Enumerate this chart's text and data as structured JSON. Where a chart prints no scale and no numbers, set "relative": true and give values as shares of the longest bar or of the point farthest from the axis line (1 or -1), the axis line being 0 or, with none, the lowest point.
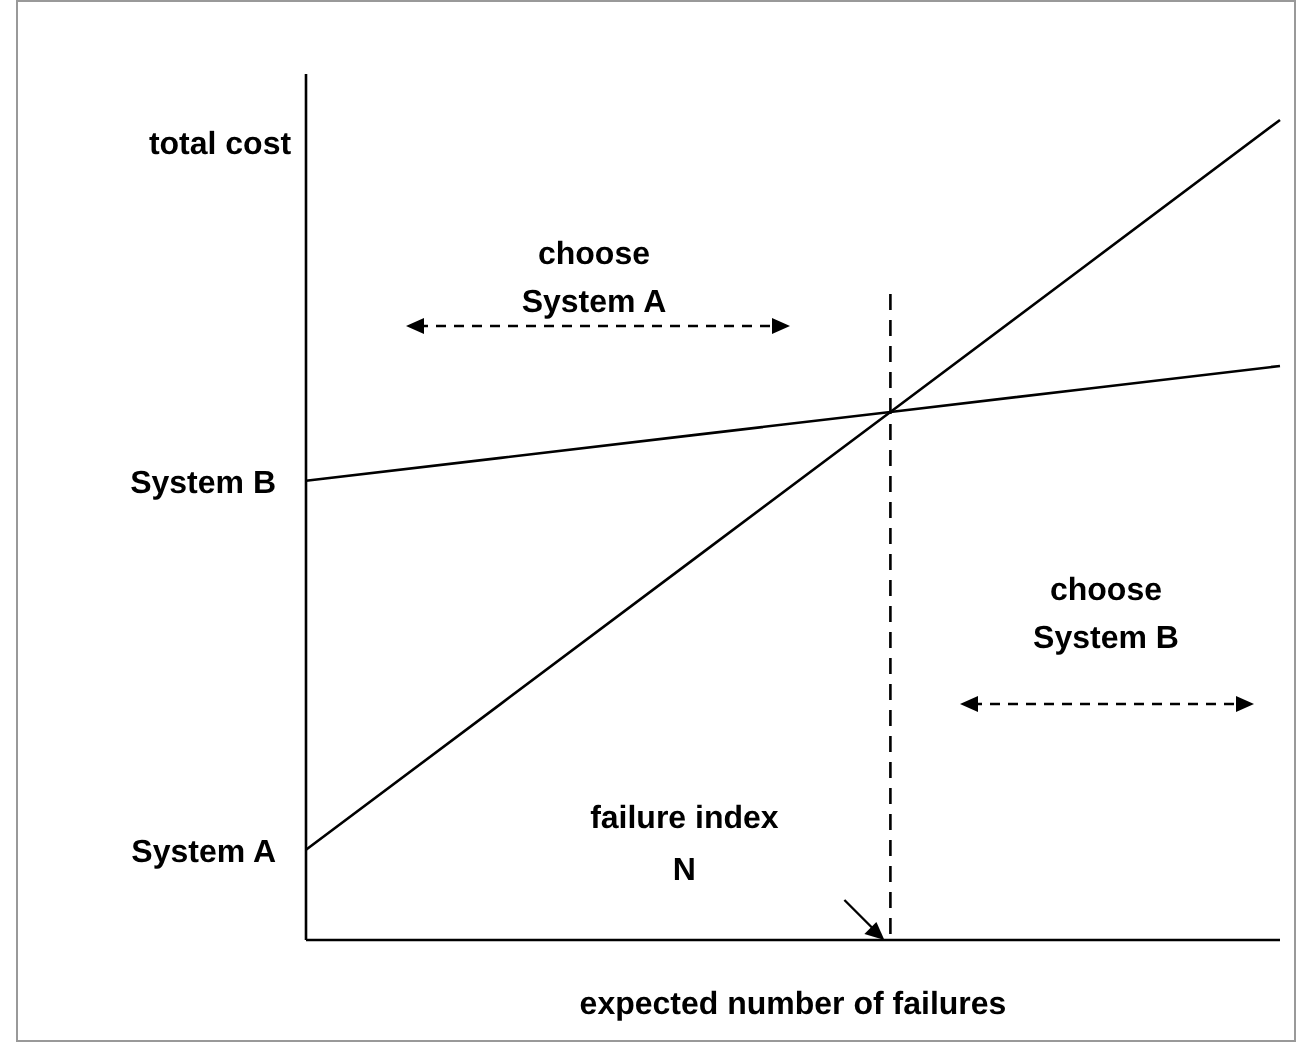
{
  "chart_data": {
    "type": "line",
    "relative": true,
    "ylabel": "total cost",
    "xlabel": "expected number of failures",
    "categories": [
      null,
      null,
      null,
      null,
      null,
      null
    ],
    "marker": "none",
    "line_style": "solid",
    "series": [
      {
        "name": "System A",
        "color": "#000000",
        "values": [
          0.11,
          0.288,
          0.466,
          0.644,
          0.822,
          1
        ]
      },
      {
        "name": "System B",
        "color": "#000000",
        "values": [
          0.56,
          0.588,
          0.616,
          0.644,
          0.672,
          0.7
        ]
      }
    ],
    "annotations": [
      "choose System A",
      "choose System B",
      "failure index N"
    ]
  }
}
